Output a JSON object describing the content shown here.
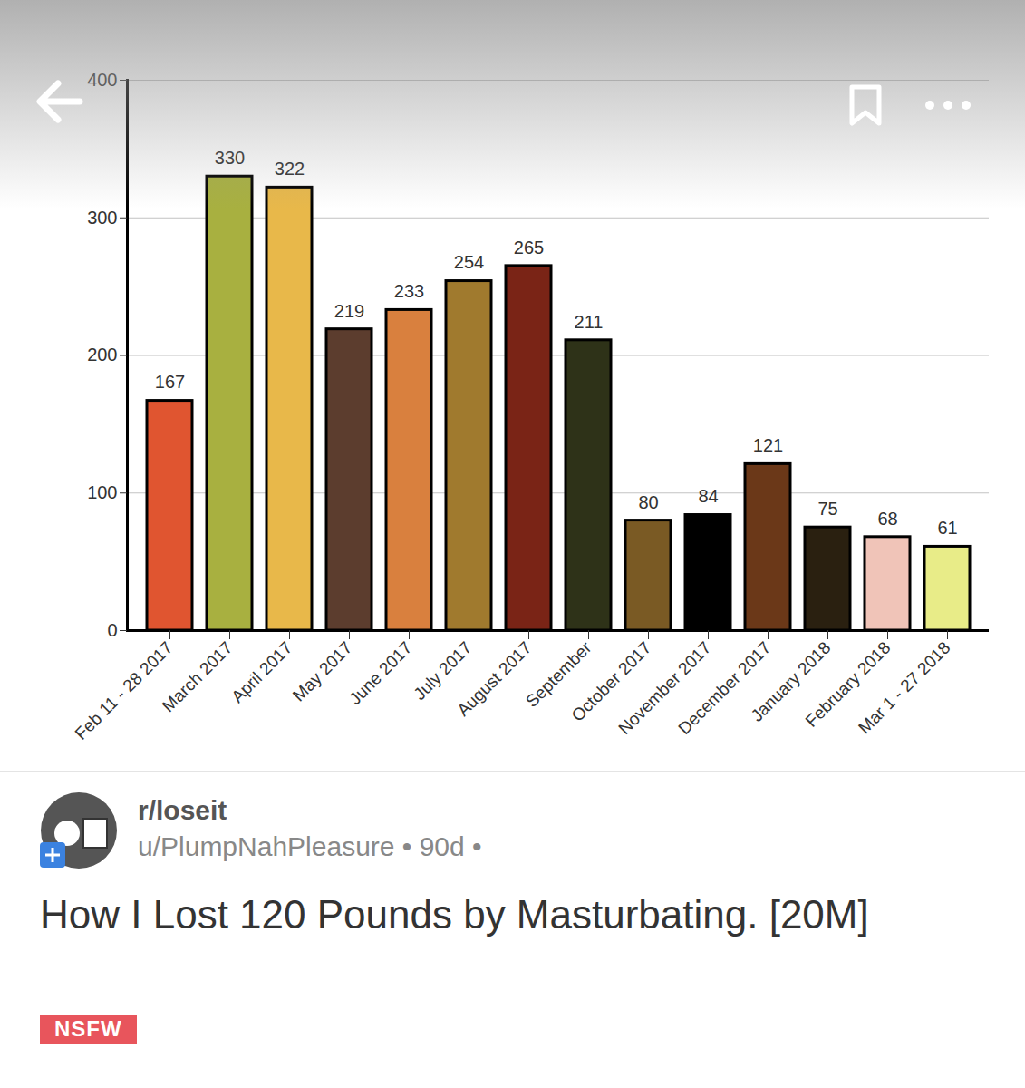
{
  "chart_data": {
    "type": "bar",
    "categories": [
      "Feb 11 - 28 2017",
      "March 2017",
      "April 2017",
      "May 2017",
      "June 2017",
      "July 2017",
      "August 2017",
      "September",
      "October 2017",
      "November 2017",
      "December 2017",
      "January 2018",
      "February 2018",
      "Mar 1 - 27 2018"
    ],
    "values": [
      167,
      330,
      322,
      219,
      233,
      254,
      265,
      211,
      80,
      84,
      121,
      75,
      68,
      61
    ],
    "colors": [
      "#e05530",
      "#a8b040",
      "#e8b84a",
      "#5c3d2e",
      "#d9803e",
      "#a07a2e",
      "#7a2416",
      "#2e3218",
      "#7a5a24",
      "#000000",
      "#6b3818",
      "#2a2010",
      "#f0c4b8",
      "#e8ec88"
    ],
    "ylim": [
      0,
      400
    ],
    "yticks": [
      0,
      100,
      200,
      300,
      400
    ],
    "grid": true,
    "data_labels": true
  },
  "post": {
    "subreddit": "r/loseit",
    "user": "u/PlumpNahPleasure",
    "age": "• 90d •",
    "title": "How I Lost 120 Pounds by Masturbating. [20M]",
    "tag": "NSFW"
  }
}
